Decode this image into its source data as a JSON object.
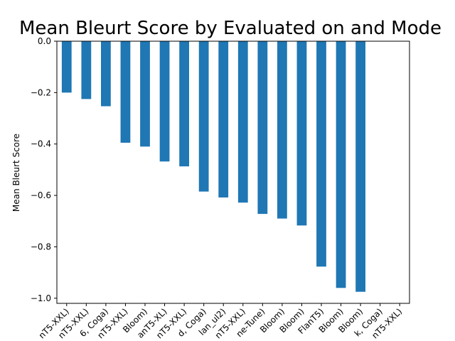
{
  "chart_data": {
    "type": "bar",
    "title": "Mean Bleurt Score by Evaluated on and Mode",
    "xlabel": "",
    "ylabel": "Mean Bleurt Score",
    "ylim": [
      -1.02,
      0.0
    ],
    "yticks": [
      0.0,
      -0.2,
      -0.4,
      -0.6,
      -0.8,
      -1.0
    ],
    "ytick_labels": [
      "0.0",
      "−0.2",
      "−0.4",
      "−0.6",
      "−0.8",
      "−1.0"
    ],
    "grid": false,
    "legend": "none",
    "bar_color": "#1f77b4",
    "categories": [
      "nT5-XXL)",
      "nT5-XXL)",
      "6, Coga)",
      "nT5-XXL)",
      "Bloom)",
      "anT5-XL)",
      "nT5-XXL)",
      "d, Coga)",
      "lan_ul2)",
      "nT5-XXL)",
      "ne-Tune)",
      "Bloom)",
      "Bloom)",
      "FlanT5)",
      "Bloom)",
      "Bloom)",
      "k, Coga)",
      "nT5-XXL)"
    ],
    "values": [
      -0.2,
      -0.225,
      -0.253,
      -0.395,
      -0.41,
      -0.468,
      -0.487,
      -0.585,
      -0.608,
      -0.628,
      -0.672,
      -0.69,
      -0.717,
      -0.877,
      -0.96,
      -0.975,
      0,
      0
    ]
  }
}
